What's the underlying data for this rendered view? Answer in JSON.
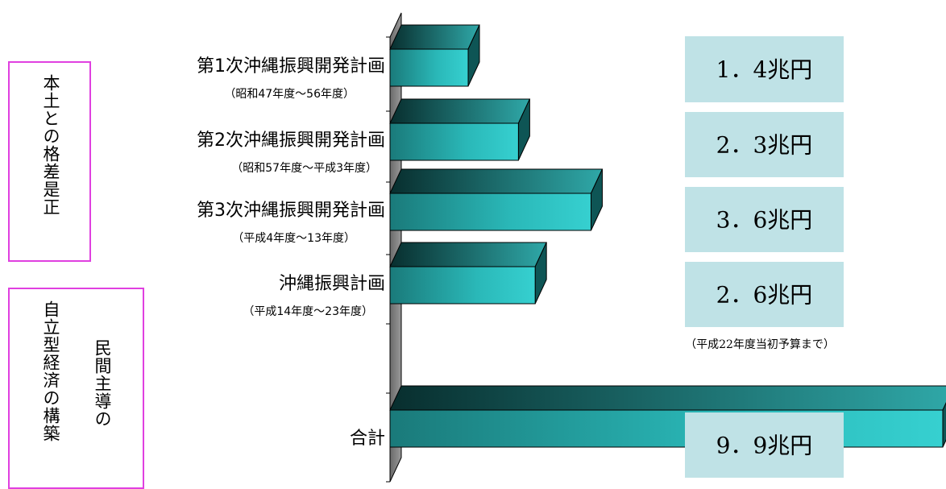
{
  "side_labels": {
    "top": "本土との格差是正",
    "bottom_right": "民間主導の",
    "bottom_left": "自立型経済の構築"
  },
  "note": "（平成22年度当初予算まで）",
  "chart_data": {
    "type": "bar",
    "orientation": "horizontal",
    "style": "3d",
    "unit": "兆円",
    "categories": [
      {
        "name": "第1次沖縄振興開発計画",
        "period": "（昭和47年度～56年度）",
        "value": 1.4,
        "value_label": "1．4兆円"
      },
      {
        "name": "第2次沖縄振興開発計画",
        "period": "（昭和57年度～平成3年度）",
        "value": 2.3,
        "value_label": "2．3兆円"
      },
      {
        "name": "第3次沖縄振興開発計画",
        "period": "（平成4年度～13年度）",
        "value": 3.6,
        "value_label": "3．6兆円"
      },
      {
        "name": "沖縄振興計画",
        "period": "（平成14年度～23年度）",
        "value": 2.6,
        "value_label": "2．6兆円"
      },
      {
        "name": "合計",
        "period": "",
        "value": 9.9,
        "value_label": "9．9兆円"
      }
    ],
    "colors": {
      "bar_front": "#33cccc",
      "bar_top_dark": "#0b3b3b",
      "bar_side": "#0e5555",
      "value_box": "#bfe2e6",
      "axis_wall": "#808080"
    }
  }
}
